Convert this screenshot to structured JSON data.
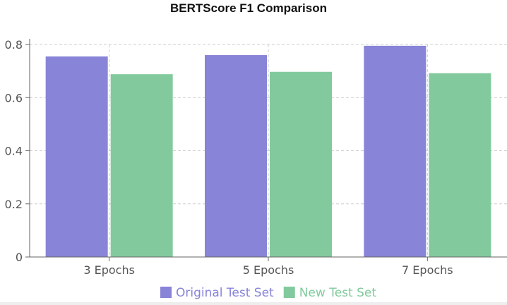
{
  "chart_data": {
    "type": "bar",
    "title": "BERTScore F1 Comparison",
    "xlabel": "",
    "ylabel": "",
    "categories": [
      "3 Epochs",
      "5 Epochs",
      "7 Epochs"
    ],
    "series": [
      {
        "name": "Original Test Set",
        "color": "#8884d8",
        "values": [
          0.755,
          0.76,
          0.795
        ]
      },
      {
        "name": "New Test Set",
        "color": "#82ca9d",
        "values": [
          0.688,
          0.697,
          0.692
        ]
      }
    ],
    "ylim": [
      0,
      0.8
    ],
    "yticks": [
      0,
      0.2,
      0.4,
      0.6,
      0.8
    ],
    "ytick_labels": [
      "0",
      "0.2",
      "0.4",
      "0.6",
      "0.8"
    ],
    "grid": true,
    "legend_position": "bottom"
  }
}
